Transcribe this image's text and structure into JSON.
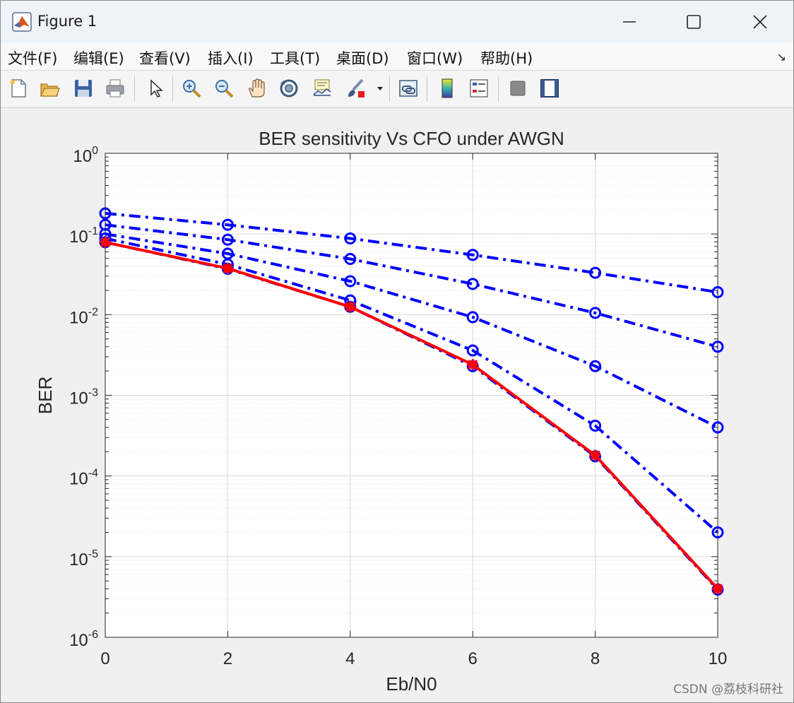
{
  "window": {
    "title": "Figure 1"
  },
  "menu": [
    "文件(F)",
    "编辑(E)",
    "查看(V)",
    "插入(I)",
    "工具(T)",
    "桌面(D)",
    "窗口(W)",
    "帮助(H)"
  ],
  "toolbar_icons": [
    "new-figure-icon",
    "open-file-icon",
    "save-icon",
    "print-icon",
    "pointer-icon",
    "zoom-in-icon",
    "zoom-out-icon",
    "pan-icon",
    "rotate-icon",
    "data-cursor-icon",
    "brush-icon",
    "brush-dropdown-icon",
    "link-plot-icon",
    "colorbar-icon",
    "legend-icon",
    "hide-plot-tools-icon",
    "show-plot-tools-icon"
  ],
  "watermark": "CSDN @荔枝科研社",
  "colors": {
    "blue": "#0000ff",
    "red": "#ff0000",
    "grid": "#d9d9d9"
  },
  "chart_data": {
    "type": "line",
    "title": "BER sensitivity Vs CFO under AWGN",
    "xlabel": "Eb/N0",
    "ylabel": "BER",
    "xlim": [
      0,
      10
    ],
    "ylim": [
      1e-06,
      1
    ],
    "yscale": "log",
    "grid": true,
    "minor_grid": true,
    "x": [
      0,
      2,
      4,
      6,
      8,
      10
    ],
    "xticks": [
      "0",
      "2",
      "4",
      "6",
      "8",
      "10"
    ],
    "yticks": [
      {
        "base": "10",
        "exp": "0"
      },
      {
        "base": "10",
        "exp": "-1"
      },
      {
        "base": "10",
        "exp": "-2"
      },
      {
        "base": "10",
        "exp": "-3"
      },
      {
        "base": "10",
        "exp": "-4"
      },
      {
        "base": "10",
        "exp": "-5"
      },
      {
        "base": "10",
        "exp": "-6"
      }
    ],
    "series": [
      {
        "style": "dash-dot",
        "marker": "circle",
        "color": "#0000ff",
        "values": [
          0.18,
          0.13,
          0.088,
          0.055,
          0.033,
          0.019
        ]
      },
      {
        "style": "dash-dot",
        "marker": "circle",
        "color": "#0000ff",
        "values": [
          0.13,
          0.085,
          0.049,
          0.024,
          0.0105,
          0.004
        ]
      },
      {
        "style": "dash-dot",
        "marker": "circle",
        "color": "#0000ff",
        "values": [
          0.1,
          0.057,
          0.026,
          0.0093,
          0.0023,
          0.0004
        ]
      },
      {
        "style": "dash-dot",
        "marker": "circle",
        "color": "#0000ff",
        "values": [
          0.088,
          0.042,
          0.015,
          0.0036,
          0.00042,
          2e-05
        ]
      },
      {
        "style": "dash-dot",
        "marker": "circle",
        "color": "#0000ff",
        "values": [
          0.079,
          0.037,
          0.0125,
          0.0023,
          0.000175,
          3.9e-06
        ]
      },
      {
        "style": "solid",
        "marker": "asterisk",
        "color": "#ff0000",
        "values": [
          0.079,
          0.0375,
          0.0125,
          0.0024,
          0.00018,
          4e-06
        ]
      }
    ]
  }
}
